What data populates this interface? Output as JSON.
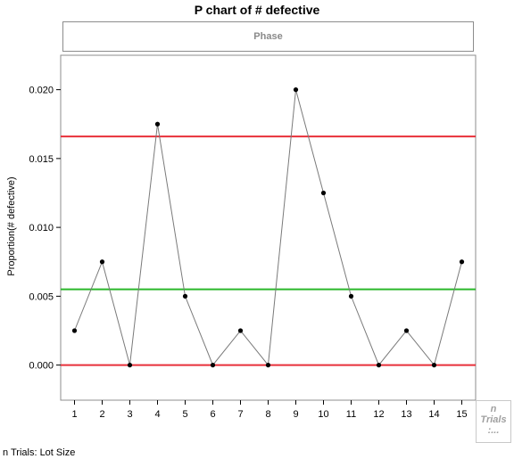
{
  "chart_data": {
    "type": "line",
    "title": "P chart of # defective",
    "phase_label": "Phase",
    "ylabel": "Proportion(# defective)",
    "x": [
      1,
      2,
      3,
      4,
      5,
      6,
      7,
      8,
      9,
      10,
      11,
      12,
      13,
      14,
      15
    ],
    "series": [
      {
        "values": [
          0.0025,
          0.0075,
          0.0,
          0.0175,
          0.005,
          0.0,
          0.0025,
          0.0,
          0.02,
          0.0125,
          0.005,
          0.0,
          0.0025,
          0.0,
          0.0075
        ]
      }
    ],
    "control_limits": {
      "ucl": 0.0166,
      "center": 0.0055,
      "lcl": 0.0
    },
    "yticks": [
      "0.000",
      "0.005",
      "0.010",
      "0.015",
      "0.020"
    ],
    "ytick_values": [
      0.0,
      0.005,
      0.01,
      0.015,
      0.02
    ],
    "xticks": [
      "1",
      "2",
      "3",
      "4",
      "5",
      "6",
      "7",
      "8",
      "9",
      "10",
      "11",
      "12",
      "13",
      "14",
      "15"
    ],
    "ylim": [
      -0.00255,
      0.0225
    ],
    "xlim": [
      0.5,
      15.5
    ],
    "grid": false,
    "colors": {
      "limit": "#e8303a",
      "center": "#2ab82a",
      "line": "#7a7a7a",
      "point": "#000000"
    }
  },
  "n_trials_box": {
    "line1": "n",
    "line2": "Trials",
    "line3": ":..."
  },
  "footer_note": "n Trials: Lot Size"
}
